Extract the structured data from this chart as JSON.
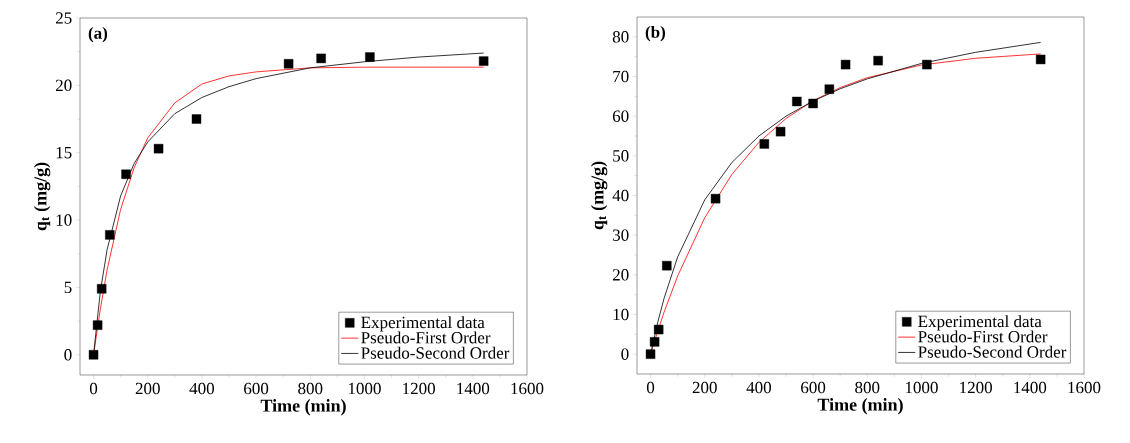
{
  "chart_data": [
    {
      "type": "scatter",
      "xlabel": "Time (min)",
      "ylabel": "q$_{t}$ (mg/g)",
      "annotations": [
        "(a)"
      ],
      "xlim": [
        -50,
        1600
      ],
      "ylim": [
        -1.5,
        25
      ],
      "xticks": [
        0,
        200,
        400,
        600,
        800,
        1000,
        1200,
        1400,
        1600
      ],
      "yticks": [
        0,
        5,
        10,
        15,
        20,
        25
      ],
      "legend": "bottom right",
      "grid": false,
      "series": [
        {
          "name": "Experimental data",
          "type": "scatter",
          "marker": "square",
          "color": "#000000",
          "x": [
            0,
            15,
            30,
            60,
            120,
            240,
            380,
            720,
            840,
            1020,
            1440
          ],
          "values": [
            0,
            2.2,
            4.9,
            8.9,
            13.4,
            15.3,
            17.5,
            21.6,
            22.0,
            22.1,
            21.8
          ]
        },
        {
          "name": "Pseudo-First Order",
          "type": "line",
          "marker": "none",
          "color": "#ff0000",
          "x": [
            0,
            25,
            50,
            100,
            150,
            200,
            300,
            400,
            500,
            600,
            800,
            1000,
            1200,
            1440
          ],
          "values": [
            0,
            3.4,
            6.3,
            10.8,
            13.9,
            16.1,
            18.7,
            20.1,
            20.7,
            21.0,
            21.3,
            21.35,
            21.35,
            21.35
          ]
        },
        {
          "name": "Pseudo-Second Order",
          "type": "line",
          "marker": "none",
          "color": "#000000",
          "x": [
            0,
            25,
            50,
            100,
            150,
            200,
            300,
            400,
            500,
            600,
            800,
            1000,
            1200,
            1440
          ],
          "values": [
            0,
            4.7,
            7.8,
            11.8,
            14.2,
            15.8,
            17.9,
            19.1,
            19.9,
            20.5,
            21.3,
            21.75,
            22.1,
            22.4
          ]
        }
      ]
    },
    {
      "type": "scatter",
      "xlabel": "Time (min)",
      "ylabel": "q$_{t}$ (mg/g)",
      "annotations": [
        "(b)"
      ],
      "xlim": [
        -50,
        1600
      ],
      "ylim": [
        -5,
        85
      ],
      "xticks": [
        0,
        200,
        400,
        600,
        800,
        1000,
        1200,
        1400,
        1600
      ],
      "yticks": [
        0,
        10,
        20,
        30,
        40,
        50,
        60,
        70,
        80
      ],
      "legend": "bottom right",
      "grid": false,
      "series": [
        {
          "name": "Experimental data",
          "type": "scatter",
          "marker": "square",
          "color": "#000000",
          "x": [
            0,
            15,
            30,
            60,
            240,
            420,
            480,
            540,
            600,
            660,
            720,
            840,
            1020,
            1440
          ],
          "values": [
            0,
            3.1,
            6.2,
            22.3,
            39.2,
            53,
            56.1,
            63.7,
            63.2,
            66.8,
            73,
            74,
            73,
            74.3
          ]
        },
        {
          "name": "Pseudo-First Order",
          "type": "line",
          "marker": "none",
          "color": "#ff0000",
          "x": [
            0,
            25,
            50,
            100,
            200,
            300,
            400,
            500,
            600,
            700,
            800,
            1000,
            1200,
            1440
          ],
          "values": [
            0,
            5.5,
            10.6,
            19.7,
            34.4,
            45.3,
            53.4,
            59.4,
            63.9,
            67.2,
            69.7,
            72.9,
            74.6,
            75.7
          ]
        },
        {
          "name": "Pseudo-Second Order",
          "type": "line",
          "marker": "none",
          "color": "#000000",
          "x": [
            0,
            25,
            50,
            100,
            200,
            300,
            400,
            500,
            600,
            700,
            800,
            1000,
            1200,
            1440
          ],
          "values": [
            0,
            7.6,
            14.1,
            24.5,
            38.9,
            48.3,
            55.0,
            60.0,
            63.8,
            66.9,
            69.4,
            73.3,
            76.1,
            78.6
          ]
        }
      ]
    }
  ]
}
